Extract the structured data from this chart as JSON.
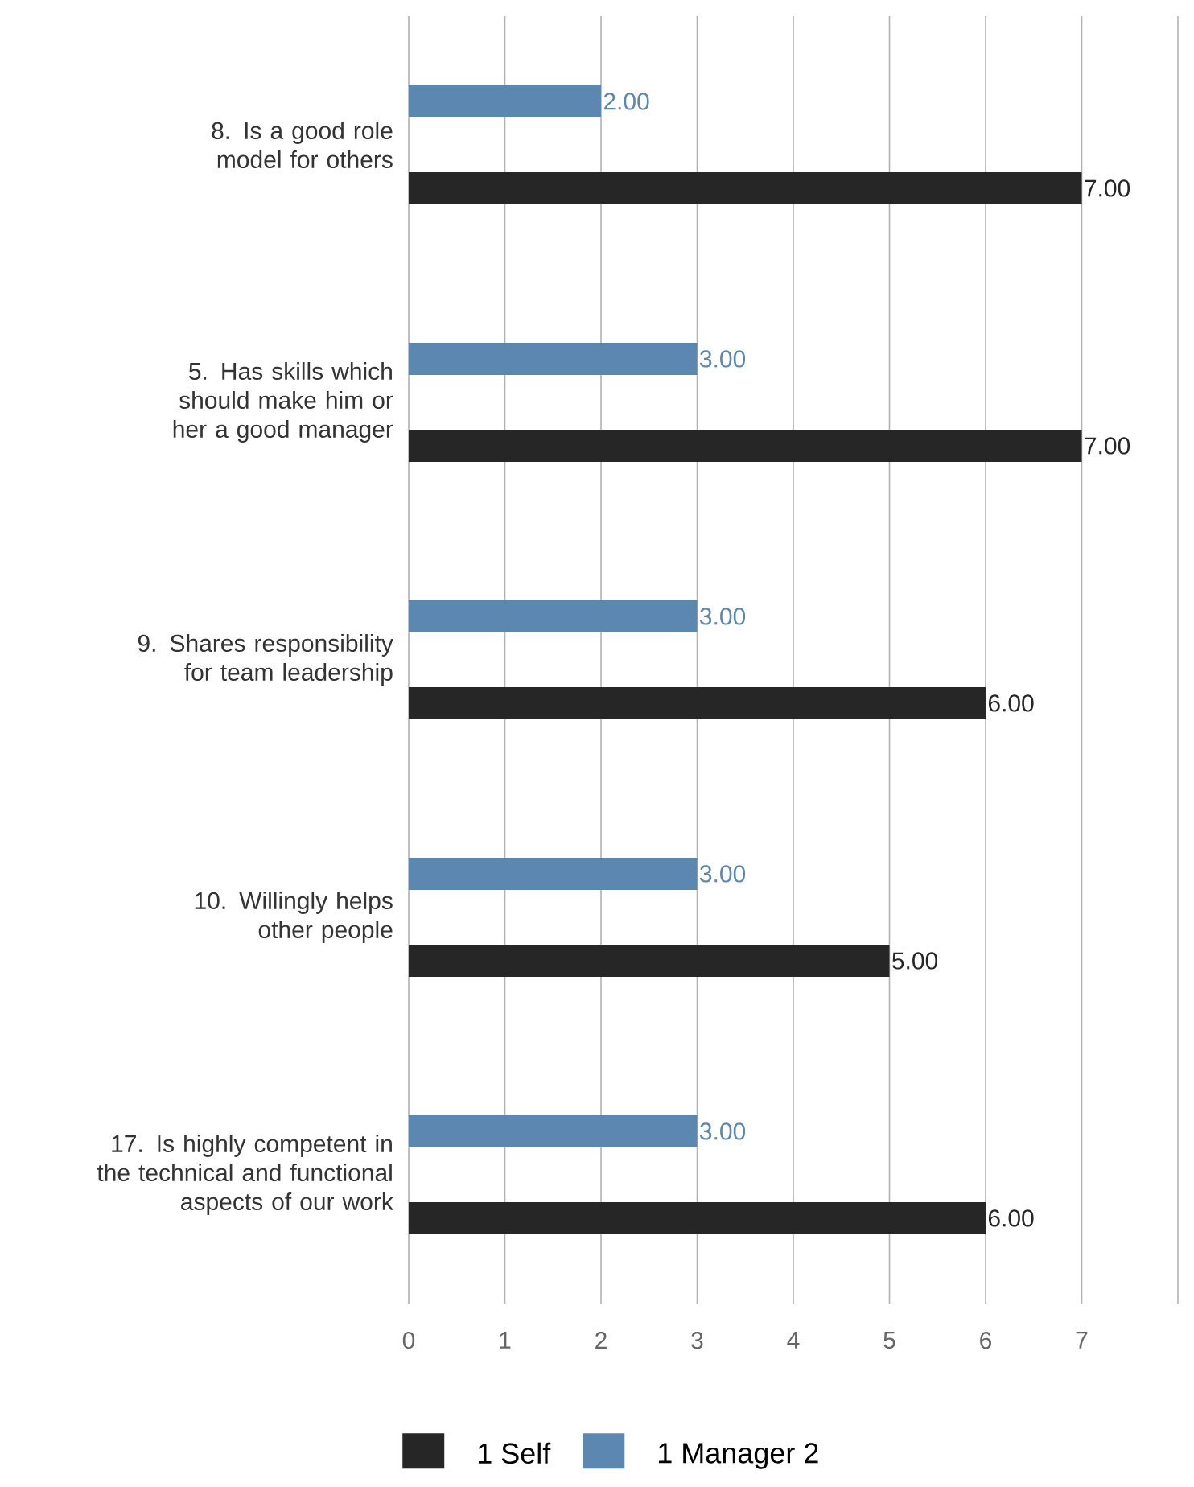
{
  "chart_data": {
    "type": "bar",
    "orientation": "horizontal",
    "categories": [
      "8. Is a good role model for others",
      "5. Has skills which should make him or her a good manager",
      "9. Shares responsibility for team leadership",
      "10. Willingly helps other people",
      "17. Is highly competent in the technical and functional aspects of our work"
    ],
    "series": [
      {
        "name": "1 Self",
        "color": "#262626",
        "values": [
          7,
          7,
          6,
          5,
          6
        ],
        "value_labels": [
          "7.00",
          "7.00",
          "6.00",
          "5.00",
          "6.00"
        ]
      },
      {
        "name": "1 Manager 2",
        "color": "#5b87b0",
        "values": [
          2,
          3,
          3,
          3,
          3
        ],
        "value_labels": [
          "2.00",
          "3.00",
          "3.00",
          "3.00",
          "3.00"
        ]
      }
    ],
    "xlim": [
      0,
      8
    ],
    "xticks": [
      0,
      1,
      2,
      3,
      4,
      5,
      6,
      7,
      {
        "value": 8,
        "label": null
      }
    ],
    "grid": "x",
    "legend": "bottom"
  }
}
